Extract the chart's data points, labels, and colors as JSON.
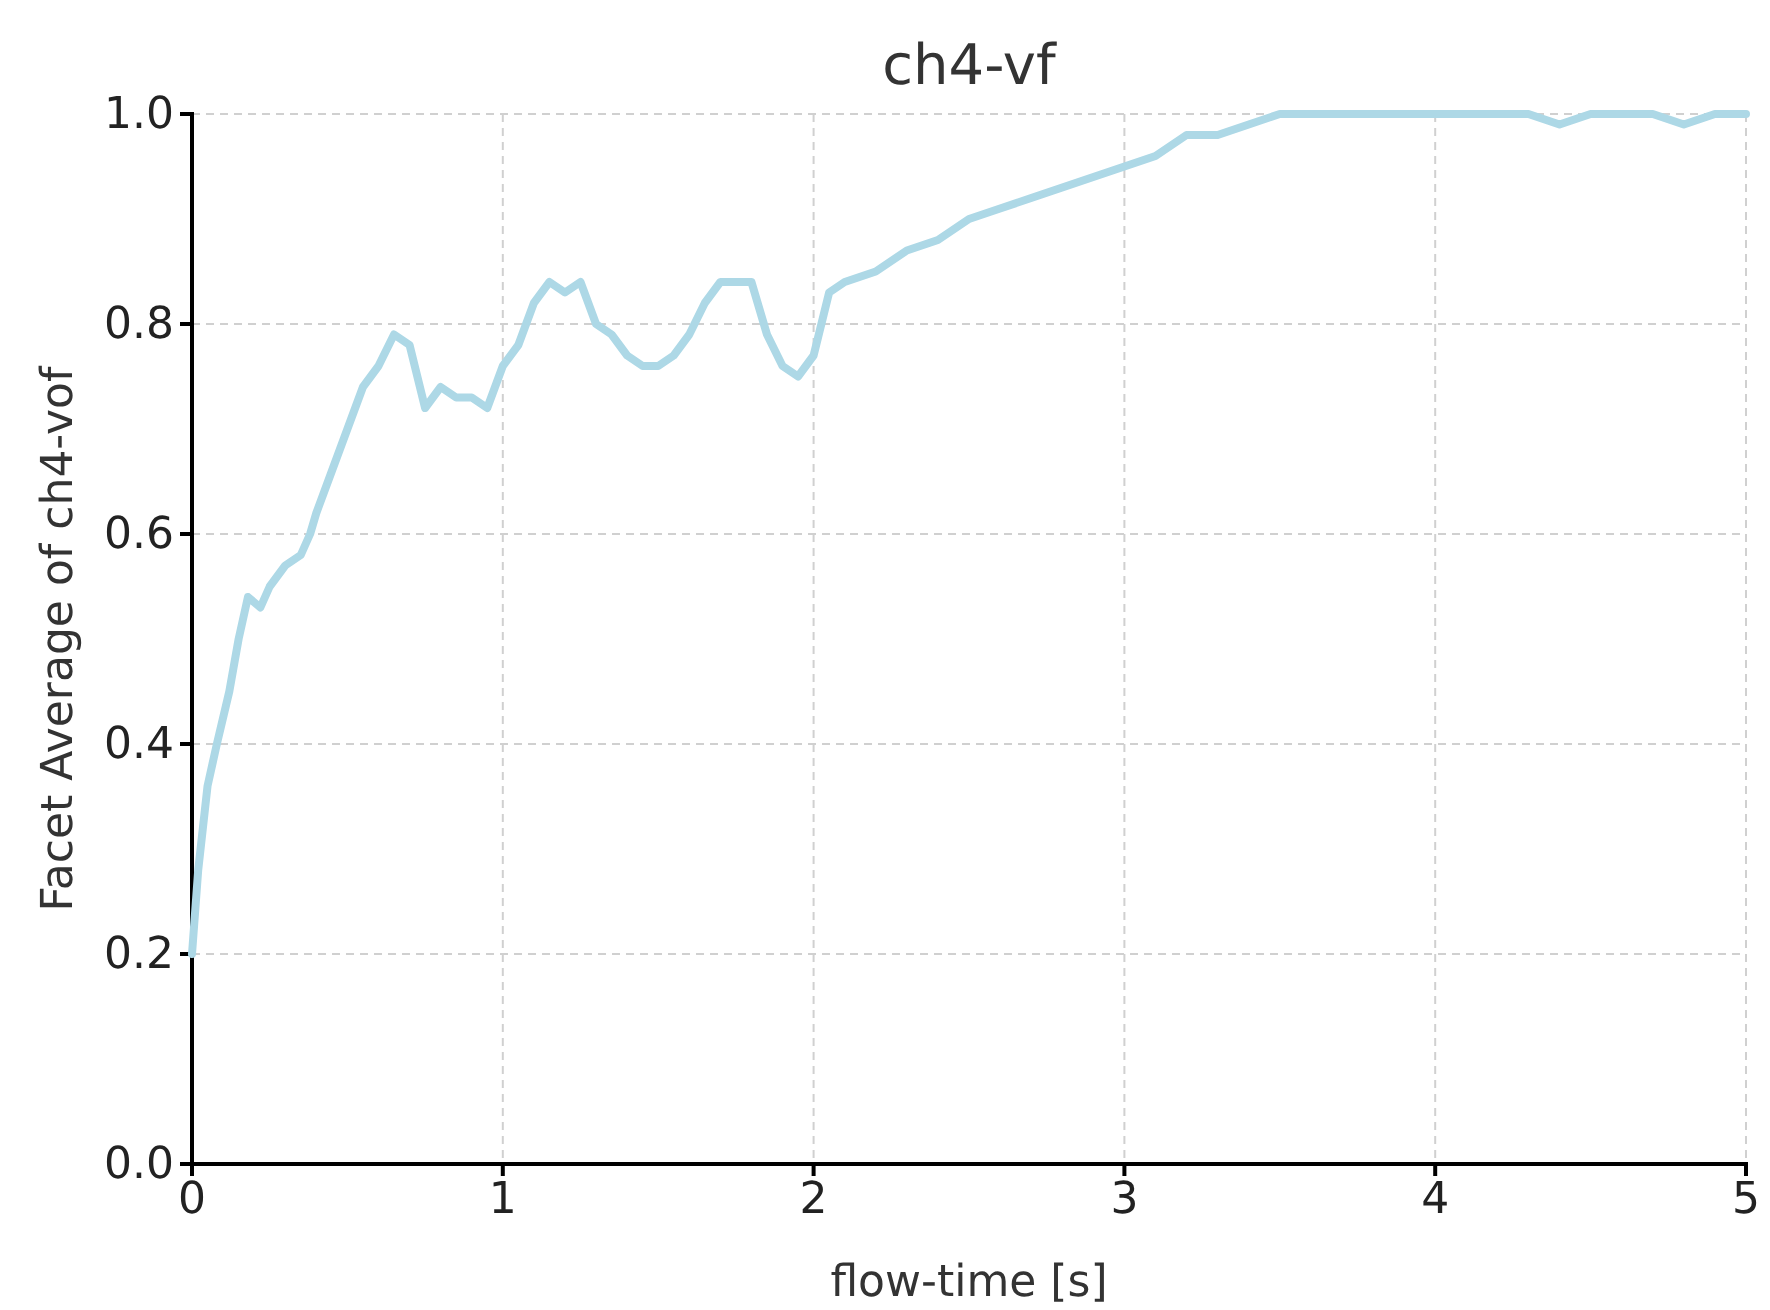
{
  "chart_data": {
    "type": "line",
    "title": "ch4-vf",
    "xlabel": "flow-time [s]",
    "ylabel": "Facet Average of ch4-vof",
    "xlim": [
      0,
      5
    ],
    "xticks": [
      0,
      1,
      2,
      3,
      4,
      5
    ],
    "ylim": [
      0,
      1
    ],
    "yticks": [
      {
        "value": 0,
        "label": "0.0"
      },
      {
        "value": 0.2,
        "label": "0.2"
      },
      {
        "value": 0.4,
        "label": "0.4"
      },
      {
        "value": 0.6,
        "label": "0.6"
      },
      {
        "value": 0.8,
        "label": "0.8"
      },
      {
        "value": 1,
        "label": "1.0"
      }
    ],
    "grid": true,
    "marker": "none",
    "line_style": "solid",
    "series": [
      {
        "color": "#add8e6",
        "x": [
          0,
          0.02,
          0.05,
          0.08,
          0.12,
          0.15,
          0.18,
          0.22,
          0.25,
          0.3,
          0.35,
          0.38,
          0.4,
          0.45,
          0.5,
          0.55,
          0.6,
          0.65,
          0.7,
          0.75,
          0.8,
          0.85,
          0.9,
          0.95,
          1,
          1.05,
          1.1,
          1.15,
          1.2,
          1.25,
          1.3,
          1.35,
          1.4,
          1.45,
          1.5,
          1.55,
          1.6,
          1.65,
          1.7,
          1.75,
          1.8,
          1.85,
          1.9,
          1.95,
          2,
          2.05,
          2.1,
          2.2,
          2.3,
          2.4,
          2.5,
          2.6,
          2.7,
          2.8,
          2.9,
          3,
          3.1,
          3.2,
          3.3,
          3.4,
          3.5,
          3.7,
          3.9,
          4.1,
          4.3,
          4.4,
          4.5,
          4.7,
          4.8,
          4.9,
          5
        ],
        "values": [
          0.2,
          0.28,
          0.36,
          0.4,
          0.45,
          0.5,
          0.54,
          0.53,
          0.55,
          0.57,
          0.58,
          0.6,
          0.62,
          0.66,
          0.7,
          0.74,
          0.76,
          0.79,
          0.78,
          0.72,
          0.74,
          0.73,
          0.73,
          0.72,
          0.76,
          0.78,
          0.82,
          0.84,
          0.83,
          0.84,
          0.8,
          0.79,
          0.77,
          0.76,
          0.76,
          0.77,
          0.79,
          0.82,
          0.84,
          0.84,
          0.84,
          0.79,
          0.76,
          0.75,
          0.77,
          0.83,
          0.84,
          0.85,
          0.87,
          0.88,
          0.9,
          0.91,
          0.92,
          0.93,
          0.94,
          0.95,
          0.96,
          0.98,
          0.98,
          0.99,
          1,
          1,
          1,
          1,
          1,
          0.99,
          1,
          1,
          0.99,
          1,
          1
        ]
      }
    ]
  }
}
